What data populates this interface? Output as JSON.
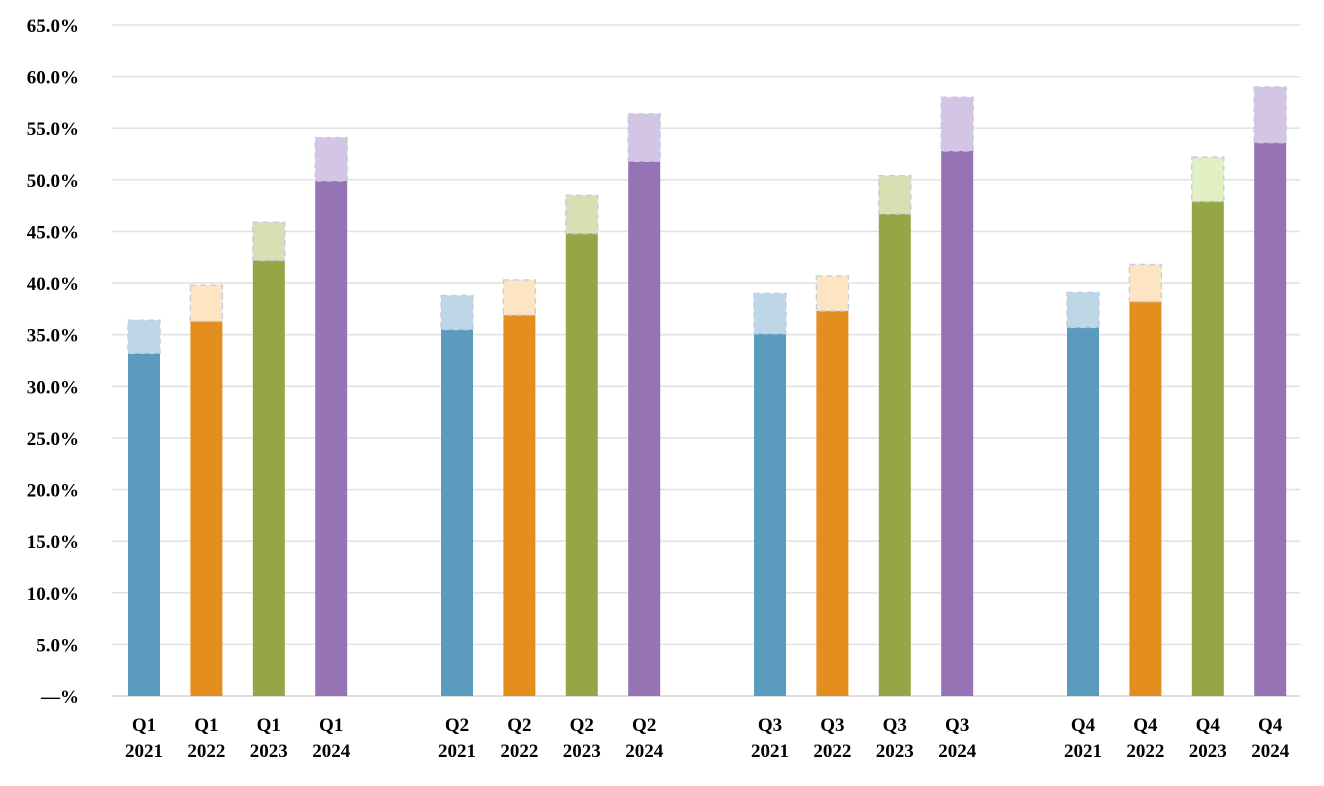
{
  "chart_data": {
    "type": "bar",
    "stacked": true,
    "yaxis": {
      "ticks": [
        "—%",
        "5.0%",
        "10.0%",
        "15.0%",
        "20.0%",
        "25.0%",
        "30.0%",
        "35.0%",
        "40.0%",
        "45.0%",
        "50.0%",
        "55.0%",
        "60.0%",
        "65.0%"
      ],
      "ylim": [
        0,
        65
      ]
    },
    "grid": true,
    "legend": "none",
    "categories": [
      {
        "quarter": "Q1",
        "year": "2021",
        "color": "#5a9bbe",
        "ext_color": "#bdd7e6",
        "value": 33.2,
        "extension": 3.2
      },
      {
        "quarter": "Q1",
        "year": "2022",
        "color": "#e38e1f",
        "ext_color": "#fde5c4",
        "value": 36.3,
        "extension": 3.5
      },
      {
        "quarter": "Q1",
        "year": "2023",
        "color": "#95a646",
        "ext_color": "#d8dfb3",
        "value": 42.2,
        "extension": 3.7
      },
      {
        "quarter": "Q1",
        "year": "2024",
        "color": "#9573b4",
        "ext_color": "#d3c5e3",
        "value": 49.9,
        "extension": 4.2
      },
      {
        "quarter": "Q2",
        "year": "2021",
        "color": "#5a9bbe",
        "ext_color": "#bdd7e6",
        "value": 35.5,
        "extension": 3.3
      },
      {
        "quarter": "Q2",
        "year": "2022",
        "color": "#e38e1f",
        "ext_color": "#fde5c4",
        "value": 36.9,
        "extension": 3.4
      },
      {
        "quarter": "Q2",
        "year": "2023",
        "color": "#95a646",
        "ext_color": "#d8dfb3",
        "value": 44.8,
        "extension": 3.7
      },
      {
        "quarter": "Q2",
        "year": "2024",
        "color": "#9573b4",
        "ext_color": "#d3c5e3",
        "value": 51.8,
        "extension": 4.6
      },
      {
        "quarter": "Q3",
        "year": "2021",
        "color": "#5a9bbe",
        "ext_color": "#bdd7e6",
        "value": 35.1,
        "extension": 3.9
      },
      {
        "quarter": "Q3",
        "year": "2022",
        "color": "#e38e1f",
        "ext_color": "#fde5c4",
        "value": 37.3,
        "extension": 3.4
      },
      {
        "quarter": "Q3",
        "year": "2023",
        "color": "#95a646",
        "ext_color": "#d8dfb3",
        "value": 46.7,
        "extension": 3.7
      },
      {
        "quarter": "Q3",
        "year": "2024",
        "color": "#9573b4",
        "ext_color": "#d3c5e3",
        "value": 52.8,
        "extension": 5.2
      },
      {
        "quarter": "Q4",
        "year": "2021",
        "color": "#5a9bbe",
        "ext_color": "#bdd7e6",
        "value": 35.7,
        "extension": 3.4
      },
      {
        "quarter": "Q4",
        "year": "2022",
        "color": "#e38e1f",
        "ext_color": "#fde5c4",
        "value": 38.2,
        "extension": 3.6
      },
      {
        "quarter": "Q4",
        "year": "2023",
        "color": "#95a646",
        "ext_color": "#e1efc2",
        "value": 47.9,
        "extension": 4.3
      },
      {
        "quarter": "Q4",
        "year": "2024",
        "color": "#9573b4",
        "ext_color": "#d3c5e3",
        "value": 53.6,
        "extension": 5.4
      }
    ]
  }
}
